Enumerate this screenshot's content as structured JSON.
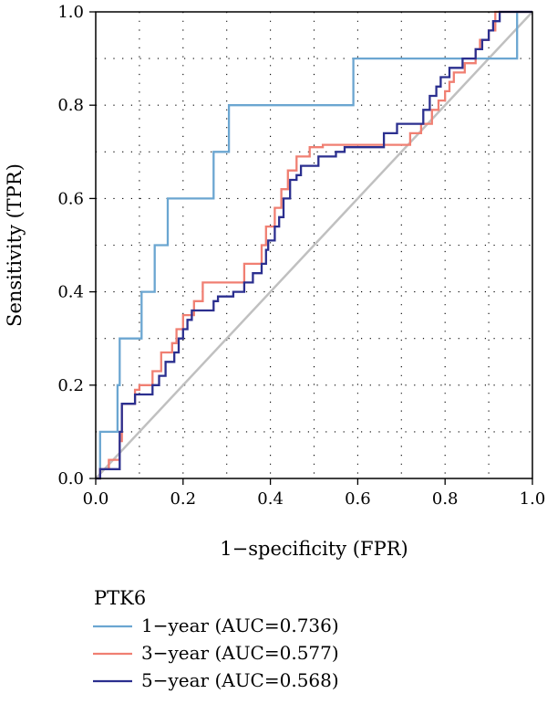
{
  "chart_data": {
    "type": "line",
    "title": "",
    "xlabel": "1−specificity (FPR)",
    "ylabel": "Sensitivity (TPR)",
    "xlim": [
      0,
      1
    ],
    "ylim": [
      0,
      1
    ],
    "xticks": [
      "0.0",
      "0.2",
      "0.4",
      "0.6",
      "0.8",
      "1.0"
    ],
    "yticks": [
      "0.0",
      "0.2",
      "0.4",
      "0.6",
      "0.8",
      "1.0"
    ],
    "grid": true,
    "grid_style": "dotted",
    "legend": {
      "title": "PTK6",
      "placement": "bottom-left outside plot"
    },
    "reference_line": {
      "from": [
        0,
        0
      ],
      "to": [
        1,
        1
      ],
      "color": "#c0c0c0"
    },
    "series": [
      {
        "name": "1−year (AUC=0.736)",
        "color": "#6ba6d1",
        "points": [
          [
            0,
            0
          ],
          [
            0.01,
            0
          ],
          [
            0.01,
            0.1
          ],
          [
            0.05,
            0.1
          ],
          [
            0.05,
            0.2
          ],
          [
            0.055,
            0.2
          ],
          [
            0.055,
            0.3
          ],
          [
            0.105,
            0.3
          ],
          [
            0.105,
            0.4
          ],
          [
            0.135,
            0.4
          ],
          [
            0.135,
            0.5
          ],
          [
            0.165,
            0.5
          ],
          [
            0.165,
            0.6
          ],
          [
            0.27,
            0.6
          ],
          [
            0.27,
            0.7
          ],
          [
            0.305,
            0.7
          ],
          [
            0.305,
            0.8
          ],
          [
            0.59,
            0.8
          ],
          [
            0.59,
            0.9
          ],
          [
            0.965,
            0.9
          ],
          [
            0.965,
            1.0
          ],
          [
            1,
            1
          ]
        ]
      },
      {
        "name": "3−year (AUC=0.577)",
        "color": "#f07f72",
        "points": [
          [
            0,
            0
          ],
          [
            0.01,
            0
          ],
          [
            0.01,
            0.02
          ],
          [
            0.03,
            0.02
          ],
          [
            0.03,
            0.04
          ],
          [
            0.055,
            0.04
          ],
          [
            0.055,
            0.08
          ],
          [
            0.06,
            0.08
          ],
          [
            0.06,
            0.16
          ],
          [
            0.09,
            0.16
          ],
          [
            0.09,
            0.19
          ],
          [
            0.1,
            0.19
          ],
          [
            0.1,
            0.2
          ],
          [
            0.13,
            0.2
          ],
          [
            0.13,
            0.23
          ],
          [
            0.15,
            0.23
          ],
          [
            0.15,
            0.27
          ],
          [
            0.175,
            0.27
          ],
          [
            0.175,
            0.29
          ],
          [
            0.185,
            0.29
          ],
          [
            0.185,
            0.32
          ],
          [
            0.2,
            0.32
          ],
          [
            0.2,
            0.35
          ],
          [
            0.225,
            0.35
          ],
          [
            0.225,
            0.38
          ],
          [
            0.245,
            0.38
          ],
          [
            0.245,
            0.42
          ],
          [
            0.34,
            0.42
          ],
          [
            0.34,
            0.46
          ],
          [
            0.38,
            0.46
          ],
          [
            0.38,
            0.5
          ],
          [
            0.39,
            0.5
          ],
          [
            0.39,
            0.54
          ],
          [
            0.41,
            0.54
          ],
          [
            0.41,
            0.58
          ],
          [
            0.425,
            0.58
          ],
          [
            0.425,
            0.62
          ],
          [
            0.44,
            0.62
          ],
          [
            0.44,
            0.66
          ],
          [
            0.46,
            0.66
          ],
          [
            0.46,
            0.69
          ],
          [
            0.49,
            0.69
          ],
          [
            0.49,
            0.71
          ],
          [
            0.52,
            0.71
          ],
          [
            0.52,
            0.715
          ],
          [
            0.72,
            0.715
          ],
          [
            0.72,
            0.74
          ],
          [
            0.745,
            0.74
          ],
          [
            0.745,
            0.76
          ],
          [
            0.77,
            0.76
          ],
          [
            0.77,
            0.79
          ],
          [
            0.785,
            0.79
          ],
          [
            0.785,
            0.81
          ],
          [
            0.8,
            0.81
          ],
          [
            0.8,
            0.83
          ],
          [
            0.81,
            0.83
          ],
          [
            0.81,
            0.85
          ],
          [
            0.82,
            0.85
          ],
          [
            0.82,
            0.87
          ],
          [
            0.845,
            0.87
          ],
          [
            0.845,
            0.89
          ],
          [
            0.87,
            0.89
          ],
          [
            0.87,
            0.92
          ],
          [
            0.88,
            0.92
          ],
          [
            0.88,
            0.94
          ],
          [
            0.9,
            0.94
          ],
          [
            0.9,
            0.96
          ],
          [
            0.915,
            0.96
          ],
          [
            0.915,
            1.0
          ],
          [
            1,
            1
          ]
        ]
      },
      {
        "name": "5−year (AUC=0.568)",
        "color": "#2b2f8f",
        "points": [
          [
            0,
            0
          ],
          [
            0.01,
            0
          ],
          [
            0.01,
            0.02
          ],
          [
            0.02,
            0.02
          ],
          [
            0.055,
            0.02
          ],
          [
            0.055,
            0.1
          ],
          [
            0.06,
            0.1
          ],
          [
            0.06,
            0.16
          ],
          [
            0.09,
            0.16
          ],
          [
            0.09,
            0.18
          ],
          [
            0.13,
            0.18
          ],
          [
            0.13,
            0.2
          ],
          [
            0.145,
            0.2
          ],
          [
            0.145,
            0.22
          ],
          [
            0.16,
            0.22
          ],
          [
            0.16,
            0.25
          ],
          [
            0.18,
            0.25
          ],
          [
            0.18,
            0.27
          ],
          [
            0.19,
            0.27
          ],
          [
            0.19,
            0.3
          ],
          [
            0.2,
            0.3
          ],
          [
            0.2,
            0.32
          ],
          [
            0.21,
            0.32
          ],
          [
            0.21,
            0.34
          ],
          [
            0.22,
            0.34
          ],
          [
            0.22,
            0.36
          ],
          [
            0.27,
            0.36
          ],
          [
            0.27,
            0.38
          ],
          [
            0.28,
            0.38
          ],
          [
            0.28,
            0.39
          ],
          [
            0.315,
            0.39
          ],
          [
            0.315,
            0.4
          ],
          [
            0.34,
            0.4
          ],
          [
            0.34,
            0.42
          ],
          [
            0.36,
            0.42
          ],
          [
            0.36,
            0.44
          ],
          [
            0.38,
            0.44
          ],
          [
            0.38,
            0.46
          ],
          [
            0.39,
            0.46
          ],
          [
            0.39,
            0.49
          ],
          [
            0.395,
            0.49
          ],
          [
            0.395,
            0.51
          ],
          [
            0.41,
            0.51
          ],
          [
            0.41,
            0.54
          ],
          [
            0.42,
            0.54
          ],
          [
            0.42,
            0.56
          ],
          [
            0.43,
            0.56
          ],
          [
            0.43,
            0.6
          ],
          [
            0.445,
            0.6
          ],
          [
            0.445,
            0.64
          ],
          [
            0.46,
            0.64
          ],
          [
            0.46,
            0.65
          ],
          [
            0.47,
            0.65
          ],
          [
            0.47,
            0.67
          ],
          [
            0.51,
            0.67
          ],
          [
            0.51,
            0.69
          ],
          [
            0.55,
            0.69
          ],
          [
            0.55,
            0.7
          ],
          [
            0.57,
            0.7
          ],
          [
            0.57,
            0.71
          ],
          [
            0.66,
            0.71
          ],
          [
            0.66,
            0.74
          ],
          [
            0.69,
            0.74
          ],
          [
            0.69,
            0.76
          ],
          [
            0.75,
            0.76
          ],
          [
            0.75,
            0.79
          ],
          [
            0.765,
            0.79
          ],
          [
            0.765,
            0.82
          ],
          [
            0.78,
            0.82
          ],
          [
            0.78,
            0.84
          ],
          [
            0.79,
            0.84
          ],
          [
            0.79,
            0.86
          ],
          [
            0.81,
            0.86
          ],
          [
            0.81,
            0.88
          ],
          [
            0.84,
            0.88
          ],
          [
            0.84,
            0.9
          ],
          [
            0.87,
            0.9
          ],
          [
            0.87,
            0.92
          ],
          [
            0.885,
            0.92
          ],
          [
            0.885,
            0.94
          ],
          [
            0.9,
            0.94
          ],
          [
            0.9,
            0.96
          ],
          [
            0.91,
            0.96
          ],
          [
            0.91,
            0.98
          ],
          [
            0.925,
            0.98
          ],
          [
            0.925,
            1.0
          ],
          [
            1,
            1
          ]
        ]
      }
    ]
  }
}
